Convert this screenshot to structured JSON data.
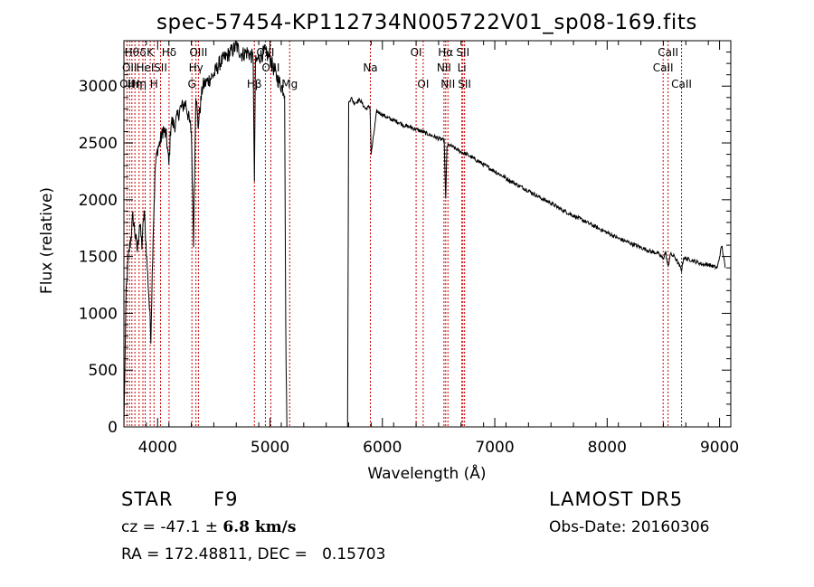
{
  "chart_data": {
    "type": "line",
    "title": "spec-57454-KP112734N005722V01_sp08-169.fits",
    "xlabel": "Wavelength (Å)",
    "ylabel": "Flux (relative)",
    "xlim": [
      3700,
      9100
    ],
    "ylim": [
      0,
      3400
    ],
    "xticks": [
      4000,
      5000,
      6000,
      7000,
      8000,
      9000
    ],
    "yticks": [
      0,
      500,
      1000,
      1500,
      2000,
      2500,
      3000
    ],
    "grid": false,
    "series": [
      {
        "x": [
          3700,
          3720,
          3740,
          3760,
          3780,
          3800,
          3820,
          3840,
          3860,
          3880,
          3900,
          3920,
          3940,
          3960,
          3980,
          4000,
          4020,
          4050,
          4080,
          4100,
          4120,
          4150,
          4200,
          4250,
          4300,
          4320,
          4340,
          4360,
          4400,
          4450,
          4500,
          4550,
          4600,
          4650,
          4700,
          4750,
          4800,
          4850,
          4861,
          4870,
          4900,
          4950,
          5000,
          5050,
          5100,
          5130,
          5140,
          5150,
          5690,
          5700,
          5720,
          5750,
          5800,
          5850,
          5890,
          5900,
          5950,
          6000,
          6050,
          6100,
          6150,
          6200,
          6250,
          6300,
          6350,
          6400,
          6450,
          6500,
          6550,
          6563,
          6575,
          6600,
          6650,
          6700,
          6750,
          6800,
          6850,
          6900,
          6950,
          7000,
          7100,
          7200,
          7300,
          7400,
          7500,
          7600,
          7700,
          7800,
          7900,
          8000,
          8100,
          8200,
          8300,
          8400,
          8450,
          8498,
          8520,
          8542,
          8560,
          8600,
          8662,
          8680,
          8700,
          8750,
          8800,
          8850,
          8900,
          8950,
          8980,
          9000,
          9020,
          9050
        ],
        "y": [
          0,
          1200,
          1500,
          1650,
          1850,
          1700,
          1550,
          1800,
          1600,
          1900,
          1550,
          1200,
          800,
          1700,
          2300,
          2450,
          2500,
          2620,
          2550,
          2300,
          2700,
          2650,
          2800,
          2850,
          2600,
          1650,
          2950,
          2650,
          3000,
          3050,
          3100,
          3200,
          3250,
          3300,
          3350,
          3280,
          3300,
          3250,
          2100,
          3200,
          3250,
          3300,
          3250,
          3100,
          3000,
          2950,
          900,
          0,
          0,
          2850,
          2900,
          2850,
          2880,
          2800,
          2820,
          2400,
          2780,
          2750,
          2720,
          2700,
          2680,
          2650,
          2640,
          2620,
          2600,
          2580,
          2560,
          2540,
          2520,
          2000,
          2470,
          2480,
          2450,
          2420,
          2400,
          2370,
          2340,
          2310,
          2280,
          2250,
          2190,
          2130,
          2080,
          2020,
          1970,
          1910,
          1860,
          1810,
          1760,
          1710,
          1660,
          1620,
          1580,
          1540,
          1530,
          1480,
          1540,
          1400,
          1520,
          1500,
          1380,
          1490,
          1480,
          1470,
          1450,
          1430,
          1430,
          1410,
          1400,
          1500,
          1600,
          1400
        ]
      }
    ],
    "lines": [
      {
        "x": 3727,
        "label": "OII",
        "row": 2
      },
      {
        "x": 3750,
        "label": "OII",
        "row": 1
      },
      {
        "x": 3771,
        "label": "Hθ",
        "row": 0
      },
      {
        "x": 3798,
        "label": "Hη",
        "row": 2
      },
      {
        "x": 3835,
        "label": "Hη",
        "row": 2
      },
      {
        "x": 3869,
        "label": "δ",
        "row": 0
      },
      {
        "x": 3889,
        "label": "HeI",
        "row": 1
      },
      {
        "x": 3934,
        "label": "K",
        "row": 0
      },
      {
        "x": 3968,
        "label": "H",
        "row": 2
      },
      {
        "x": 4026,
        "label": "SII",
        "row": 1
      },
      {
        "x": 4102,
        "label": "Hδ",
        "row": 0
      },
      {
        "x": 4305,
        "label": "G",
        "row": 2
      },
      {
        "x": 4341,
        "label": "Hγ",
        "row": 1
      },
      {
        "x": 4363,
        "label": "OIII",
        "row": 0
      },
      {
        "x": 4861,
        "label": "Hβ",
        "row": 2
      },
      {
        "x": 4959,
        "label": "OIII",
        "row": 0
      },
      {
        "x": 5007,
        "label": "OIII",
        "row": 1
      },
      {
        "x": 5175,
        "label": "Mg",
        "row": 2
      },
      {
        "x": 5893,
        "label": "Na",
        "row": 1
      },
      {
        "x": 6300,
        "label": "OI",
        "row": 0
      },
      {
        "x": 6363,
        "label": "OI",
        "row": 2
      },
      {
        "x": 6548,
        "label": "NII",
        "row": 1
      },
      {
        "x": 6563,
        "label": "Hα",
        "row": 0
      },
      {
        "x": 6583,
        "label": "NII",
        "row": 2
      },
      {
        "x": 6707,
        "label": "Li",
        "row": 1
      },
      {
        "x": 6716,
        "label": "SII",
        "row": 0
      },
      {
        "x": 6731,
        "label": "SII",
        "row": 2
      },
      {
        "x": 8498,
        "label": "CaII",
        "row": 1
      },
      {
        "x": 8542,
        "label": "CaII",
        "row": 0
      },
      {
        "x": 8662,
        "label": "CaII",
        "row": 2
      }
    ]
  },
  "info": {
    "object_type": "STAR",
    "object_class": "F9",
    "cz_text": "cz = -47.1 ± ",
    "cz_error": "6.8 km/s",
    "radec_text": "RA = 172.48811, DEC =   0.15703",
    "survey": "LAMOST DR5",
    "obs_date": "Obs-Date: 20160306"
  },
  "colors": {
    "axis": "#000000",
    "spectrum": "#000000",
    "line_marker": "#cc0000"
  }
}
